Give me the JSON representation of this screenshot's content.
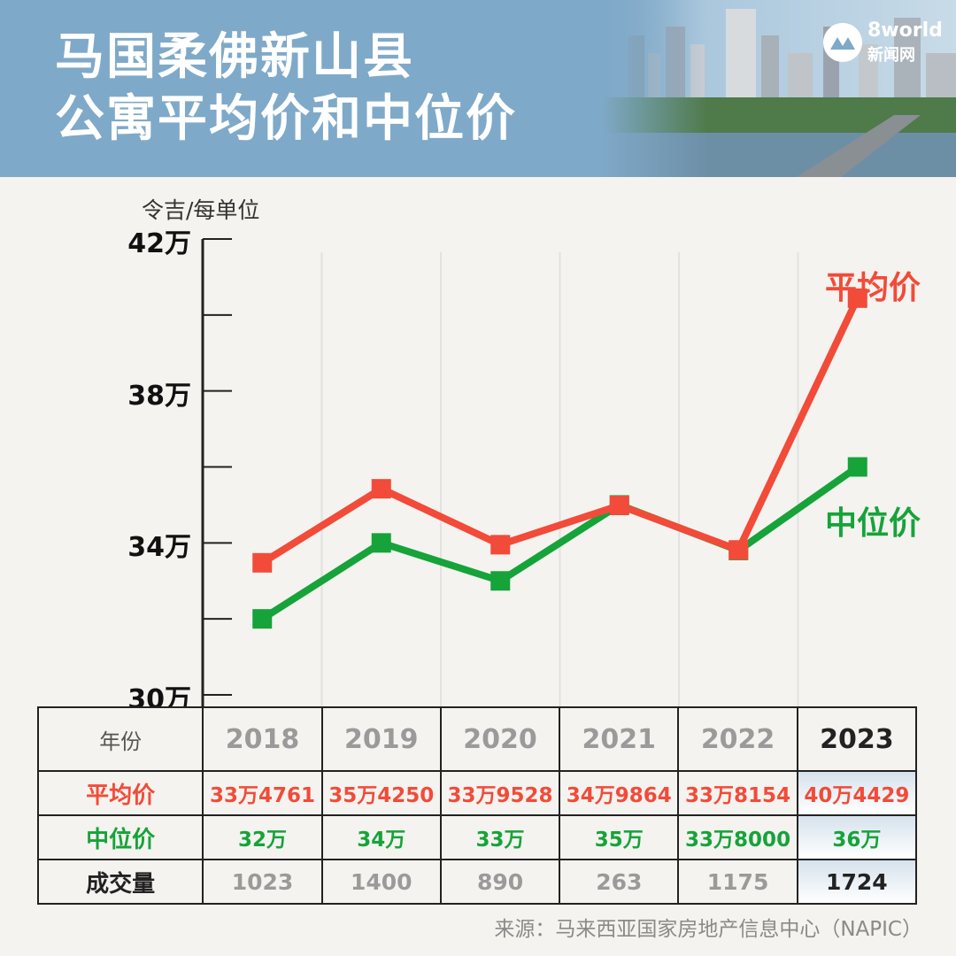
{
  "header": {
    "title_line1": "马国柔佛新山县",
    "title_line2": "公寓平均价和中位价",
    "logo_top": "8world",
    "logo_bottom": "新闻网"
  },
  "chart_data": {
    "type": "line",
    "ylabel": "令吉/每单位",
    "ylim": [
      300000,
      420000
    ],
    "yticks": [
      {
        "value": 420000,
        "label": "42万"
      },
      {
        "value": 380000,
        "label": "38万"
      },
      {
        "value": 340000,
        "label": "34万"
      },
      {
        "value": 300000,
        "label": "30万"
      }
    ],
    "categories": [
      "2018",
      "2019",
      "2020",
      "2021",
      "2022",
      "2023"
    ],
    "series": [
      {
        "name": "平均价",
        "color": "#f24b39",
        "values": [
          334761,
          354250,
          339528,
          349864,
          338154,
          404429
        ]
      },
      {
        "name": "中位价",
        "color": "#16a33a",
        "values": [
          320000,
          340000,
          330000,
          350000,
          338000,
          360000
        ]
      }
    ],
    "grid": "vertical"
  },
  "table": {
    "year_header": "年份",
    "years": [
      "2018",
      "2019",
      "2020",
      "2021",
      "2022",
      "2023"
    ],
    "rows": [
      {
        "label": "平均价",
        "cells": [
          "33万4761",
          "35万4250",
          "33万9528",
          "34万9864",
          "33万8154",
          "40万4429"
        ]
      },
      {
        "label": "中位价",
        "cells": [
          "32万",
          "34万",
          "33万",
          "35万",
          "33万8000",
          "36万"
        ]
      },
      {
        "label": "成交量",
        "cells": [
          "1023",
          "1400",
          "890",
          "263",
          "1175",
          "1724"
        ]
      }
    ]
  },
  "source": "来源：马来西亚国家房地产信息中心（NAPIC）"
}
